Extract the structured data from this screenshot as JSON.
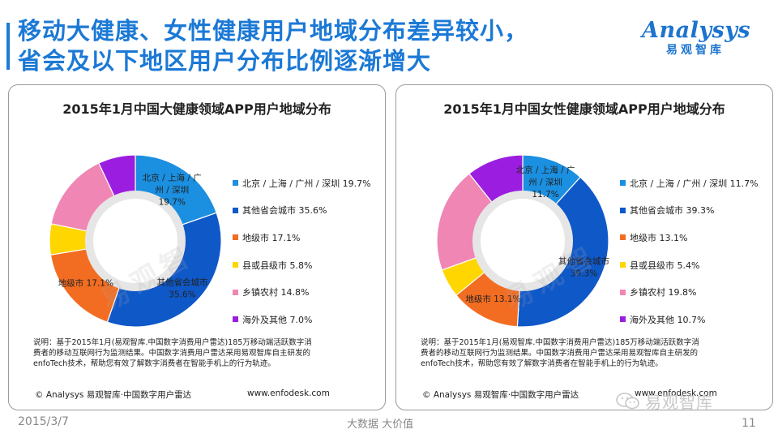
{
  "slide": {
    "title_line1": "移动大健康、女性健康用户地域分布差异较小，",
    "title_line2": "省会及以下地区用户分布比例逐渐增大",
    "logo_en": "Analysys",
    "logo_cn": "易观智库",
    "date": "2015/3/7",
    "slogan": "大数据   大价值",
    "page": "11",
    "wechat_name": "易观智库",
    "note_line1": "说明：基于2015年1月(易观智库.中国数字消费用户雷达)185万移动端活跃数字消",
    "note_line2": "费者的移动互联网行为监测结果。中国数字消费用户雷达采用易观智库自主研发的",
    "note_line3": "enfoTech技术，帮助您有效了解数字消费者在智能手机上的行为轨迹。",
    "copyright": "© Analysys 易观智库·中国数字用户雷达",
    "site": "www.enfodesk.com",
    "watermark": "易观智"
  },
  "colors": {
    "tier1": "#1b8fe0",
    "province": "#0f58c8",
    "prefecture": "#f26d22",
    "county": "#ffd600",
    "rural": "#ef86b4",
    "overseas": "#9b1ee0"
  },
  "chart_data": [
    {
      "type": "pie",
      "donut": true,
      "title": "2015年1月中国大健康领域APP用户地域分布",
      "categories": [
        "北京 / 上海 / 广州 / 深圳",
        "其他省会城市",
        "地级市",
        "县或县级市",
        "乡镇农村",
        "海外及其他"
      ],
      "values": [
        19.7,
        35.6,
        17.1,
        5.8,
        14.8,
        7.0
      ],
      "legend": [
        "北京 / 上海 / 广州 / 深圳 19.7%",
        "其他省会城市 35.6%",
        "地级市 17.1%",
        "县或县级市 5.8%",
        "乡镇农村 14.8%",
        "海外及其他 7.0%"
      ],
      "data_labels": [
        {
          "lines": [
            "北京 / 上海 / 广",
            "州 / 深圳",
            "19.7%"
          ]
        },
        {
          "lines": [
            "其他省会城市",
            "35.6%"
          ]
        },
        {
          "lines": [
            "地级市 17.1%"
          ]
        }
      ],
      "legend_position": "right"
    },
    {
      "type": "pie",
      "donut": true,
      "title": "2015年1月中国女性健康领域APP用户地域分布",
      "categories": [
        "北京 / 上海 / 广州 / 深圳",
        "其他省会城市",
        "地级市",
        "县或县级市",
        "乡镇农村",
        "海外及其他"
      ],
      "values": [
        11.7,
        39.3,
        13.1,
        5.4,
        19.8,
        10.7
      ],
      "legend": [
        "北京 / 上海 / 广州 / 深圳 11.7%",
        "其他省会城市 39.3%",
        "地级市 13.1%",
        "县或县级市 5.4%",
        "乡镇农村 19.8%",
        "海外及其他 10.7%"
      ],
      "data_labels": [
        {
          "lines": [
            "北京 / 上海 / 广",
            "州 / 深圳",
            "11.7%"
          ]
        },
        {
          "lines": [
            "其他省会城市",
            "39.3%"
          ]
        },
        {
          "lines": [
            "地级市 13.1%"
          ]
        }
      ],
      "legend_position": "right"
    }
  ]
}
